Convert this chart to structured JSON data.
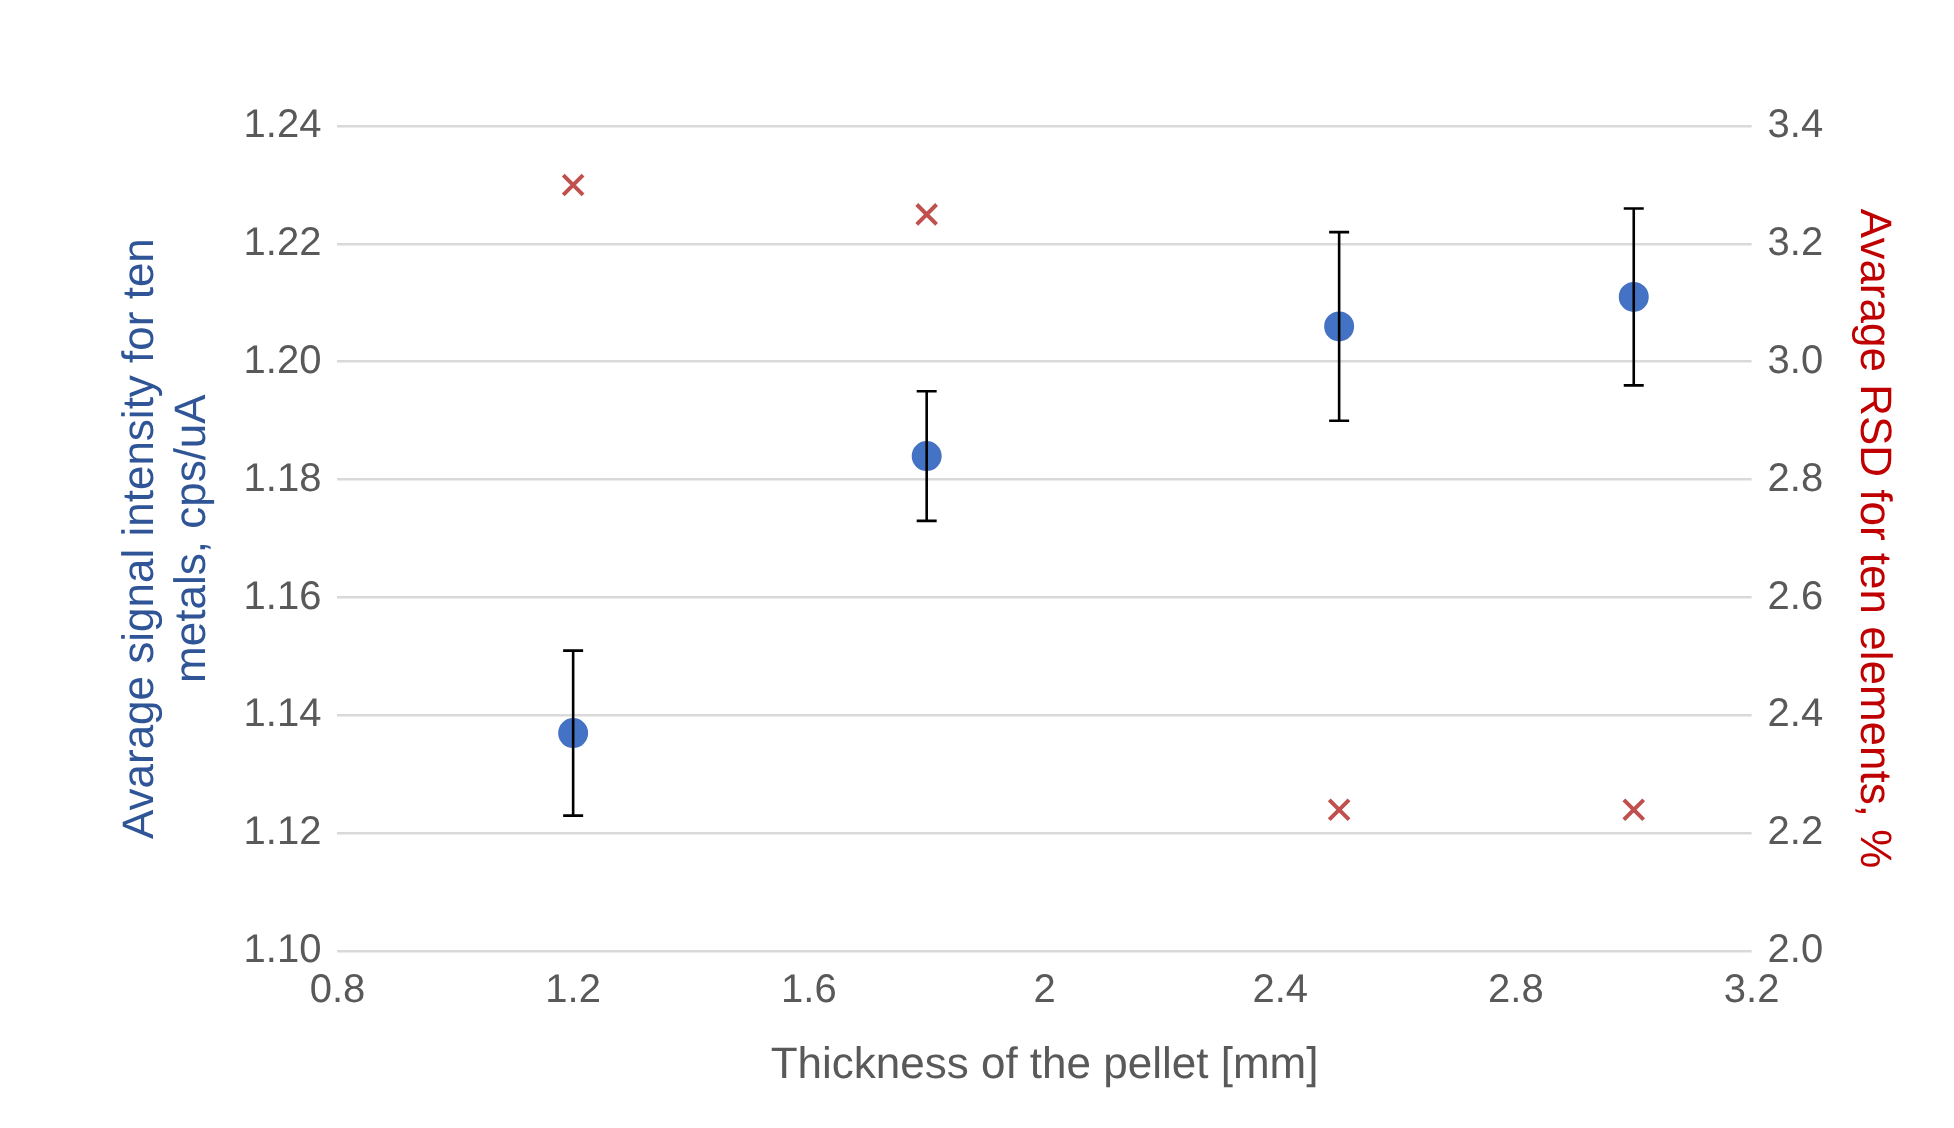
{
  "chart_data": {
    "type": "scatter",
    "xlabel": "Thickness of the pellet [mm]",
    "ylabel": "Avarage signal intensity for ten metals, cps/uA",
    "y2label": "Avarage RSD for ten elements, %",
    "series": [
      {
        "color": "#4472c4",
        "marker": "circle",
        "x": [
          1.2,
          1.8,
          2.5,
          3.0
        ],
        "values": [
          1.137,
          1.184,
          1.206,
          1.211
        ],
        "errors": [
          0.014,
          0.011,
          0.016,
          0.015
        ]
      },
      {
        "color": "#c0504d",
        "marker": "cross",
        "axis": "y2",
        "x": [
          1.2,
          1.8,
          2.5,
          3.0
        ],
        "values": [
          3.3,
          3.25,
          2.24,
          2.24
        ]
      }
    ],
    "xlim": [
      0.8,
      3.2
    ],
    "xticks": [
      0.8,
      1.2,
      1.6,
      {
        "value": 2,
        "label": "2"
      },
      2.4,
      2.8,
      3.2
    ],
    "ylim": [
      1.1,
      1.24
    ],
    "yticks": [
      {
        "value": 1.1,
        "label": "1.10"
      },
      {
        "value": 1.12,
        "label": "1.12"
      },
      {
        "value": 1.14,
        "label": "1.14"
      },
      {
        "value": 1.16,
        "label": "1.16"
      },
      {
        "value": 1.18,
        "label": "1.18"
      },
      {
        "value": 1.2,
        "label": "1.20"
      },
      {
        "value": 1.22,
        "label": "1.22"
      },
      {
        "value": 1.24,
        "label": "1.24"
      }
    ],
    "y2lim": [
      2.0,
      3.4
    ],
    "y2ticks": [
      {
        "value": 2,
        "label": "2.0"
      },
      {
        "value": 2.2,
        "label": "2.2"
      },
      {
        "value": 2.4,
        "label": "2.4"
      },
      {
        "value": 2.6,
        "label": "2.6"
      },
      {
        "value": 2.8,
        "label": "2.8"
      },
      {
        "value": 3,
        "label": "3.0"
      },
      {
        "value": 3.2,
        "label": "3.2"
      },
      {
        "value": 3.4,
        "label": "3.4"
      }
    ],
    "grid": "y",
    "legend": false
  }
}
